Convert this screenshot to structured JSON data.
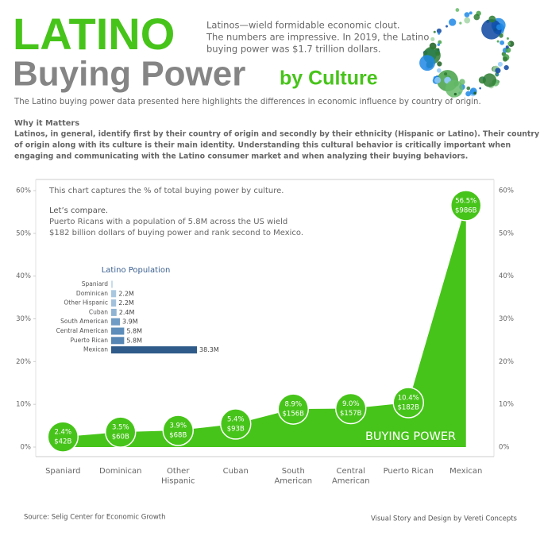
{
  "header": {
    "title": "LATINO",
    "title_line2": "Buying Power",
    "title_suffix": "by Culture",
    "intro_lines": [
      "Latinos—wield formidable economic clout.",
      "The numbers are impressive. In 2019, the Latino",
      "buying power was $1.7 trillion dollars."
    ],
    "subtitle": "The Latino buying power data presented here highlights the differences in economic influence by country of origin."
  },
  "why": {
    "heading": "Why it Matters",
    "lines": [
      "Latinos, in general, identify first by their country of origin and secondly by their ethnicity (Hispanic or Latino). Their country",
      "of origin along with its culture is their main identity. Understanding this cultural behavior is critically important when",
      "engaging and communicating with the Latino consumer market and when analyzing their buying behaviors."
    ]
  },
  "chart_data": [
    {
      "type": "area",
      "categories": [
        "Spaniard",
        "Dominican",
        "Other\nHispanic",
        "Cuban",
        "South\nAmerican",
        "Central\nAmerican",
        "Puerto Rican",
        "Mexican"
      ],
      "values": [
        2.4,
        3.5,
        3.9,
        5.4,
        8.9,
        9.0,
        10.4,
        56.5
      ],
      "value_labels": [
        "2.4%",
        "3.5%",
        "3.9%",
        "5.4%",
        "8.9%",
        "9.0%",
        "10.4%",
        "56.5%"
      ],
      "buying_power_labels": [
        "$42B",
        "$60B",
        "$68B",
        "$93B",
        "$156B",
        "$157B",
        "$182B",
        "$986B"
      ],
      "color": "#47c41a",
      "ylim": [
        0,
        60
      ],
      "yticks": [
        {
          "value": 0,
          "label": "0%"
        },
        {
          "value": 10,
          "label": "10%"
        },
        {
          "value": 20,
          "label": "20%"
        },
        {
          "value": 30,
          "label": "30%"
        },
        {
          "value": 40,
          "label": "40%"
        },
        {
          "value": 50,
          "label": "50%"
        },
        {
          "value": 60,
          "label": "60%"
        }
      ],
      "grid": false,
      "annotations": [
        "This chart captures the % of total buying power by culture.",
        "Let’s compare.",
        "Puerto Ricans with a population of 5.8M across the US wield",
        "$182 billion dollars of buying power and rank second to Mexico."
      ],
      "area_label": "BUYING POWER"
    },
    {
      "type": "hbar",
      "title": "Latino Population",
      "categories": [
        "Spaniard",
        "Dominican",
        "Other Hispanic",
        "Cuban",
        "South American",
        "Central American",
        "Puerto Rican",
        "Mexican"
      ],
      "values": [
        0.7,
        2.2,
        2.2,
        2.4,
        3.9,
        5.8,
        5.8,
        38.3
      ],
      "value_labels": [
        null,
        "2.2M",
        "2.2M",
        "2.4M",
        "3.9M",
        "5.8M",
        "5.8M",
        "38.3M"
      ],
      "colors": [
        "#c9dcea",
        "#a9c8e0",
        "#a2c2dc",
        "#8fb4d3",
        "#6f9cc4",
        "#5d8dba",
        "#5686b4",
        "#2f5b8a"
      ]
    }
  ],
  "footer": {
    "source": "Source:  Selig Center for Economic Growth",
    "credit": "Visual Story and Design by Vereti Concepts"
  }
}
